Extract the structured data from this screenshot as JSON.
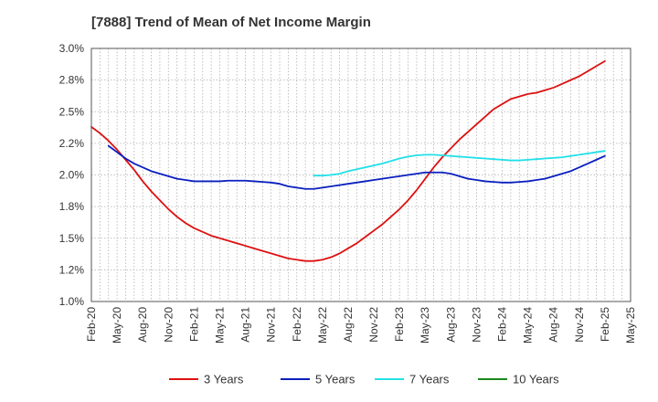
{
  "chart_data": {
    "type": "line",
    "title": "[7888]  Trend of Mean of Net Income Margin",
    "xlabel": "",
    "ylabel": "",
    "x_ticks": [
      "Feb-20",
      "May-20",
      "Aug-20",
      "Nov-20",
      "Feb-21",
      "May-21",
      "Aug-21",
      "Nov-21",
      "Feb-22",
      "May-22",
      "Aug-22",
      "Nov-22",
      "Feb-23",
      "May-23",
      "Aug-23",
      "Nov-23",
      "Feb-24",
      "May-24",
      "Aug-24",
      "Nov-24",
      "Feb-25",
      "May-25"
    ],
    "y_ticks": [
      "1.0%",
      "1.2%",
      "1.5%",
      "1.8%",
      "2.0%",
      "2.2%",
      "2.5%",
      "2.8%",
      "3.0%"
    ],
    "ylim": [
      1.0,
      3.0
    ],
    "y_unit": "%",
    "grid": true,
    "legend_position": "bottom",
    "series": [
      {
        "name": "3 Years",
        "color": "#dd1111",
        "x": [
          "Feb-20",
          "Mar-20",
          "Apr-20",
          "May-20",
          "Jun-20",
          "Jul-20",
          "Aug-20",
          "Sep-20",
          "Oct-20",
          "Nov-20",
          "Dec-20",
          "Jan-21",
          "Feb-21",
          "Mar-21",
          "Apr-21",
          "May-21",
          "Jun-21",
          "Jul-21",
          "Aug-21",
          "Sep-21",
          "Oct-21",
          "Nov-21",
          "Dec-21",
          "Jan-22",
          "Feb-22",
          "Mar-22",
          "Apr-22",
          "May-22",
          "Jun-22",
          "Jul-22",
          "Aug-22",
          "Sep-22",
          "Oct-22",
          "Nov-22",
          "Dec-22",
          "Jan-23",
          "Feb-23",
          "Mar-23",
          "Apr-23",
          "May-23",
          "Jun-23",
          "Jul-23",
          "Aug-23",
          "Sep-23",
          "Oct-23",
          "Nov-23",
          "Dec-23",
          "Jan-24",
          "Feb-24",
          "Mar-24",
          "Apr-24",
          "May-24",
          "Jun-24",
          "Jul-24",
          "Aug-24",
          "Sep-24",
          "Oct-24",
          "Nov-24",
          "Dec-24",
          "Jan-25",
          "Feb-25"
        ],
        "values": [
          2.38,
          2.33,
          2.27,
          2.2,
          2.12,
          2.04,
          1.95,
          1.87,
          1.8,
          1.73,
          1.67,
          1.62,
          1.58,
          1.55,
          1.52,
          1.5,
          1.48,
          1.46,
          1.44,
          1.42,
          1.4,
          1.38,
          1.36,
          1.34,
          1.33,
          1.32,
          1.32,
          1.33,
          1.35,
          1.38,
          1.42,
          1.46,
          1.51,
          1.56,
          1.61,
          1.67,
          1.73,
          1.8,
          1.88,
          1.97,
          2.06,
          2.14,
          2.21,
          2.28,
          2.34,
          2.4,
          2.46,
          2.52,
          2.56,
          2.6,
          2.62,
          2.64,
          2.65,
          2.67,
          2.69,
          2.72,
          2.75,
          2.78,
          2.82,
          2.86,
          2.9
        ]
      },
      {
        "name": "5 Years",
        "color": "#0a1fbf",
        "x": [
          "Apr-20",
          "May-20",
          "Jun-20",
          "Jul-20",
          "Aug-20",
          "Sep-20",
          "Oct-20",
          "Nov-20",
          "Dec-20",
          "Jan-21",
          "Feb-21",
          "Mar-21",
          "Apr-21",
          "May-21",
          "Jun-21",
          "Jul-21",
          "Aug-21",
          "Sep-21",
          "Oct-21",
          "Nov-21",
          "Dec-21",
          "Jan-22",
          "Feb-22",
          "Mar-22",
          "Apr-22",
          "May-22",
          "Jun-22",
          "Jul-22",
          "Aug-22",
          "Sep-22",
          "Oct-22",
          "Nov-22",
          "Dec-22",
          "Jan-23",
          "Feb-23",
          "Mar-23",
          "Apr-23",
          "May-23",
          "Jun-23",
          "Jul-23",
          "Aug-23",
          "Sep-23",
          "Oct-23",
          "Nov-23",
          "Dec-23",
          "Jan-24",
          "Feb-24",
          "Mar-24",
          "Apr-24",
          "May-24",
          "Jun-24",
          "Jul-24",
          "Aug-24",
          "Sep-24",
          "Oct-24",
          "Nov-24",
          "Dec-24",
          "Jan-25",
          "Feb-25"
        ],
        "values": [
          2.23,
          2.18,
          2.13,
          2.09,
          2.06,
          2.03,
          2.01,
          1.99,
          1.97,
          1.96,
          1.95,
          1.95,
          1.95,
          1.95,
          1.955,
          1.955,
          1.955,
          1.95,
          1.945,
          1.94,
          1.93,
          1.91,
          1.9,
          1.89,
          1.89,
          1.9,
          1.91,
          1.92,
          1.93,
          1.94,
          1.95,
          1.96,
          1.97,
          1.98,
          1.99,
          2.0,
          2.01,
          2.02,
          2.02,
          2.02,
          2.01,
          1.99,
          1.97,
          1.96,
          1.95,
          1.945,
          1.94,
          1.94,
          1.945,
          1.95,
          1.96,
          1.97,
          1.99,
          2.01,
          2.03,
          2.06,
          2.09,
          2.12,
          2.15
        ]
      },
      {
        "name": "7 Years",
        "color": "#22e0e8",
        "x": [
          "Apr-22",
          "May-22",
          "Jun-22",
          "Jul-22",
          "Aug-22",
          "Sep-22",
          "Oct-22",
          "Nov-22",
          "Dec-22",
          "Jan-23",
          "Feb-23",
          "Mar-23",
          "Apr-23",
          "May-23",
          "Jun-23",
          "Jul-23",
          "Aug-23",
          "Sep-23",
          "Oct-23",
          "Nov-23",
          "Dec-23",
          "Jan-24",
          "Feb-24",
          "Mar-24",
          "Apr-24",
          "May-24",
          "Jun-24",
          "Jul-24",
          "Aug-24",
          "Sep-24",
          "Oct-24",
          "Nov-24",
          "Dec-24",
          "Jan-25",
          "Feb-25"
        ],
        "values": [
          1.995,
          1.995,
          2.0,
          2.01,
          2.03,
          2.045,
          2.06,
          2.075,
          2.09,
          2.11,
          2.13,
          2.145,
          2.155,
          2.16,
          2.16,
          2.155,
          2.15,
          2.145,
          2.14,
          2.135,
          2.13,
          2.125,
          2.12,
          2.115,
          2.115,
          2.12,
          2.125,
          2.13,
          2.135,
          2.14,
          2.15,
          2.16,
          2.17,
          2.18,
          2.19
        ]
      },
      {
        "name": "10 Years",
        "color": "#1a8a1a",
        "x": [],
        "values": []
      }
    ]
  }
}
